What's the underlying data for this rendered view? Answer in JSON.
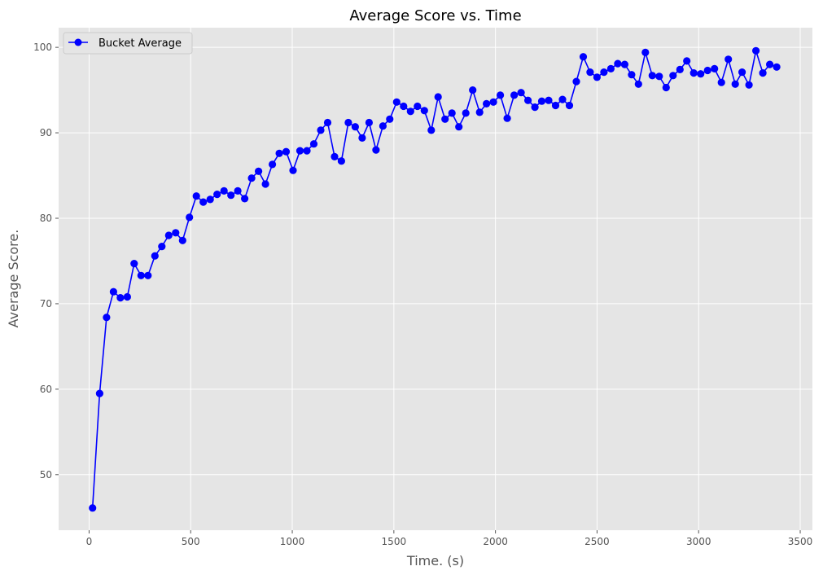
{
  "chart_data": {
    "type": "line",
    "title": "Average Score vs. Time",
    "xlabel": "Time. (s)",
    "ylabel": "Average Score.",
    "xlim": [
      -150,
      3560
    ],
    "ylim": [
      43.5,
      102.3
    ],
    "xticks": [
      0,
      500,
      1000,
      1500,
      2000,
      2500,
      3000,
      3500
    ],
    "yticks": [
      50,
      60,
      70,
      80,
      90,
      100
    ],
    "grid": true,
    "legend_position": "top-left",
    "series": [
      {
        "name": "Bucket Average",
        "color": "#0000ff",
        "marker": "circle",
        "x": [
          17,
          52,
          86,
          120,
          154,
          188,
          222,
          256,
          290,
          324,
          358,
          392,
          426,
          460,
          494,
          528,
          562,
          596,
          630,
          664,
          698,
          732,
          766,
          800,
          834,
          868,
          902,
          936,
          970,
          1004,
          1038,
          1072,
          1106,
          1140,
          1174,
          1208,
          1242,
          1276,
          1310,
          1344,
          1378,
          1412,
          1446,
          1480,
          1514,
          1548,
          1582,
          1616,
          1650,
          1684,
          1718,
          1752,
          1786,
          1820,
          1854,
          1888,
          1922,
          1956,
          1990,
          2024,
          2058,
          2092,
          2126,
          2160,
          2194,
          2228,
          2262,
          2296,
          2330,
          2364,
          2398,
          2432,
          2466,
          2500,
          2534,
          2568,
          2602,
          2636,
          2670,
          2704,
          2738,
          2772,
          2806,
          2840,
          2874,
          2908,
          2942,
          2976,
          3010,
          3044,
          3078,
          3112,
          3146,
          3180,
          3214,
          3248,
          3282,
          3316,
          3350,
          3384
        ],
        "y": [
          46.1,
          59.5,
          68.4,
          71.4,
          70.7,
          70.8,
          74.7,
          73.3,
          73.3,
          75.6,
          76.7,
          78.0,
          78.3,
          77.4,
          80.1,
          82.6,
          81.9,
          82.2,
          82.8,
          83.2,
          82.7,
          83.2,
          82.3,
          84.7,
          85.5,
          84.0,
          86.3,
          87.6,
          87.8,
          85.6,
          87.9,
          87.9,
          88.7,
          90.3,
          91.2,
          87.2,
          86.7,
          91.2,
          90.7,
          89.4,
          91.2,
          88.0,
          90.8,
          91.6,
          93.6,
          93.1,
          92.5,
          93.1,
          92.6,
          90.3,
          94.2,
          91.6,
          92.3,
          90.7,
          92.3,
          95.0,
          92.4,
          93.4,
          93.6,
          94.4,
          91.7,
          94.4,
          94.7,
          93.8,
          93.0,
          93.7,
          93.8,
          93.2,
          93.9,
          93.2,
          96.0,
          98.9,
          97.1,
          96.5,
          97.1,
          97.5,
          98.1,
          98.0,
          96.8,
          95.7,
          99.4,
          96.7,
          96.6,
          95.3,
          96.7,
          97.4,
          98.4,
          97.0,
          96.9,
          97.3,
          97.5,
          95.9,
          98.6,
          95.7,
          97.1,
          95.6,
          99.6,
          97.0,
          98.0,
          97.7
        ]
      }
    ]
  }
}
